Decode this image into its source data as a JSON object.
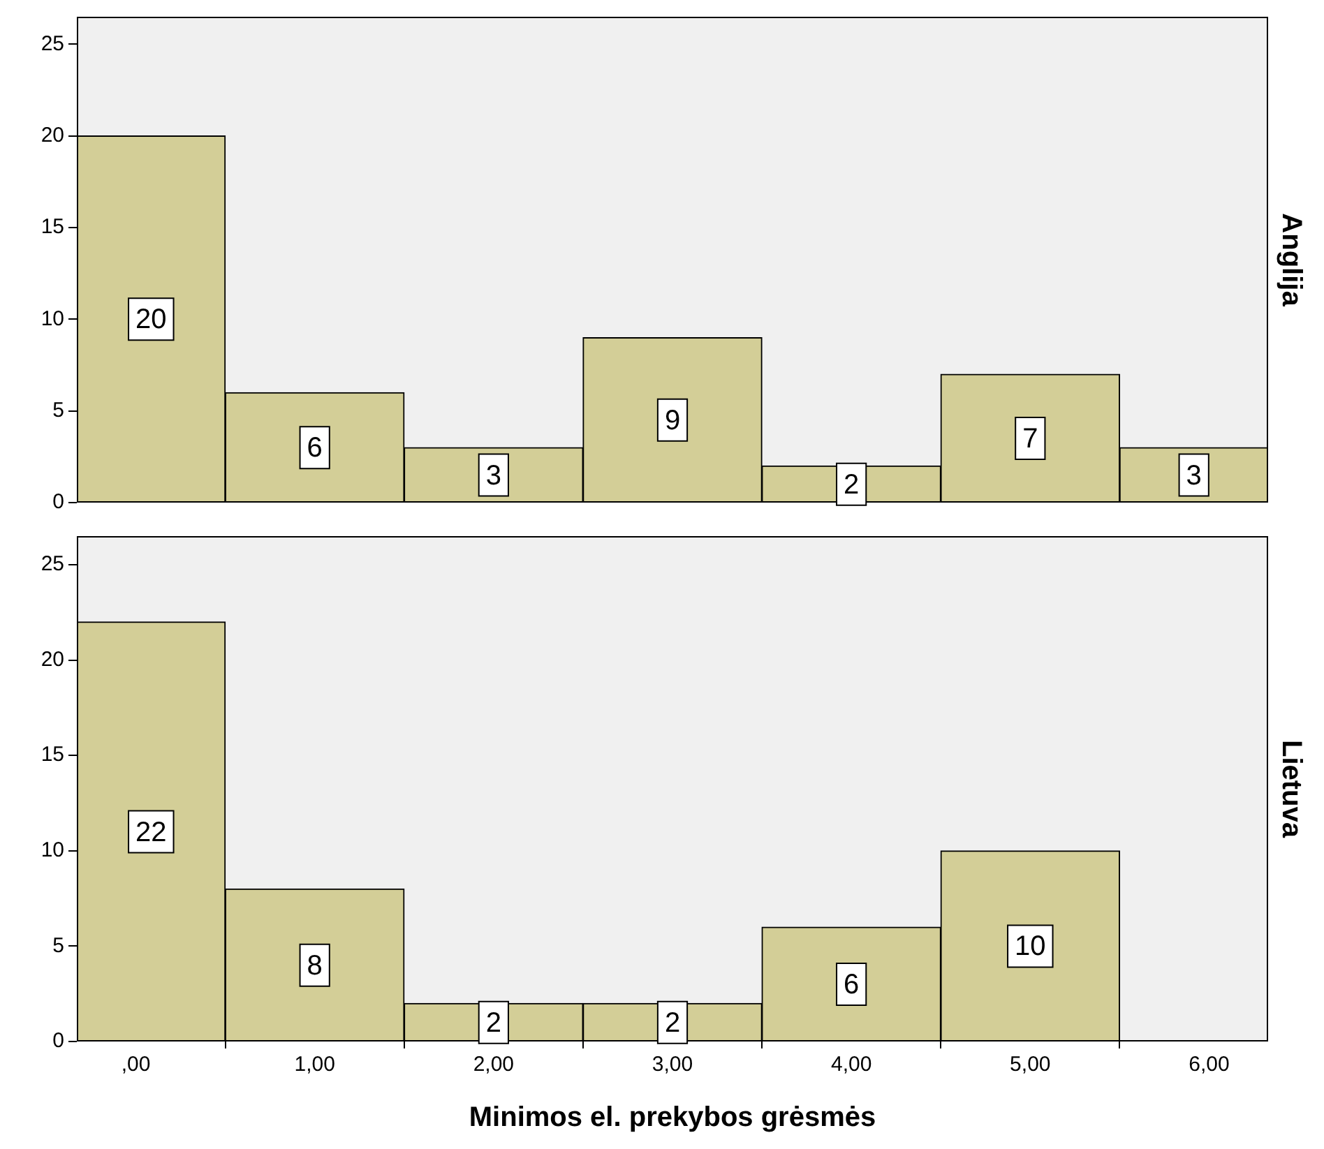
{
  "chart_data": [
    {
      "type": "histogram",
      "y2label": "Anglija",
      "bins": [
        -0.5,
        0.5,
        1.5,
        2.5,
        3.5,
        4.5,
        5.5,
        6.5
      ],
      "values": [
        20,
        6,
        3,
        9,
        2,
        7,
        3
      ],
      "value_labels": [
        "20",
        "6",
        "3",
        "9",
        "2",
        "7",
        "3"
      ],
      "color": "#d3ce97",
      "xlim": [
        -0.33,
        6.33
      ],
      "ylim": [
        0,
        26.5
      ],
      "yticks": [
        0,
        5,
        10,
        15,
        20,
        25
      ],
      "tick_labels": "y"
    },
    {
      "type": "histogram",
      "y2label": "Lietuva",
      "xlabel": "Minimos el. prekybos grėsmės",
      "bins": [
        -0.5,
        0.5,
        1.5,
        2.5,
        3.5,
        4.5,
        5.5,
        6.5
      ],
      "values": [
        22,
        8,
        2,
        2,
        6,
        10,
        0
      ],
      "value_labels": [
        "22",
        "8",
        "2",
        "2",
        "6",
        "10",
        null
      ],
      "color": "#d3ce97",
      "xlim": [
        -0.33,
        6.33
      ],
      "xticks": [
        {
          "value": 0,
          "label": ",00"
        },
        {
          "value": 1,
          "label": "1,00"
        },
        {
          "value": 2,
          "label": "2,00"
        },
        {
          "value": 3,
          "label": "3,00"
        },
        {
          "value": 4,
          "label": "4,00"
        },
        {
          "value": 5,
          "label": "5,00"
        },
        {
          "value": 6,
          "label": "6,00"
        }
      ],
      "ylim": [
        0,
        26.5
      ],
      "yticks": [
        0,
        5,
        10,
        15,
        20,
        25
      ]
    }
  ]
}
